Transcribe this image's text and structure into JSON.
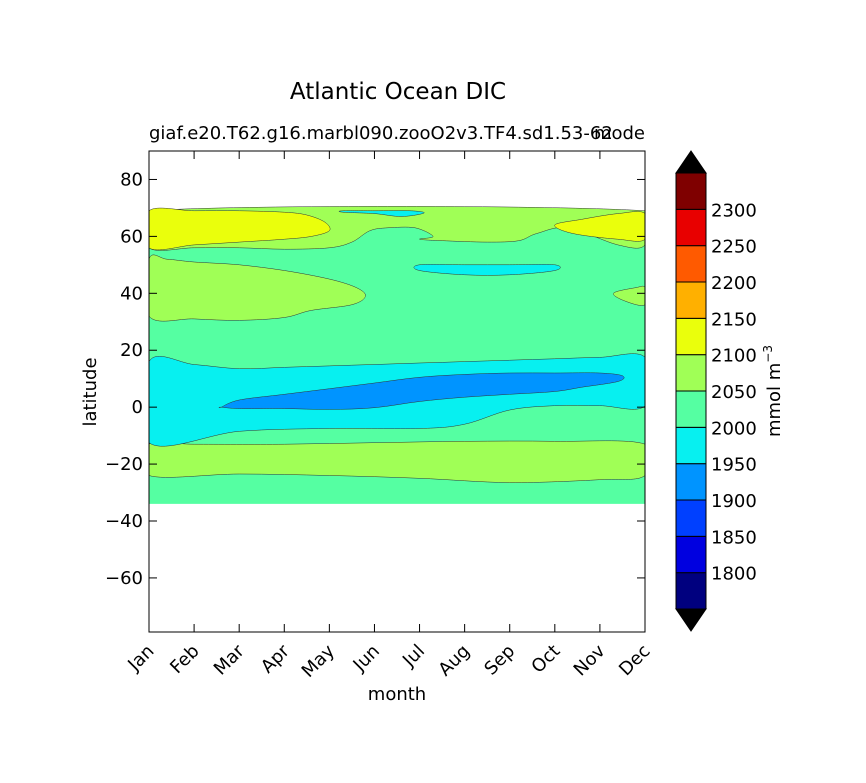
{
  "chart_data": {
    "type": "contourf",
    "title": "Atlantic Ocean DIC",
    "subtitle_left": "giaf.e20.T62.g16.marbl090.zooO2v3.TF4.sd1.53-62",
    "subtitle_right": "mode",
    "xlabel": "month",
    "ylabel": "latitude",
    "x_ticks": [
      "Jan",
      "Feb",
      "Mar",
      "Apr",
      "May",
      "Jun",
      "Jul",
      "Aug",
      "Sep",
      "Oct",
      "Nov",
      "Dec"
    ],
    "y_ticks": [
      80,
      60,
      40,
      20,
      0,
      -20,
      -40,
      -60
    ],
    "xlim": [
      0,
      11
    ],
    "ylim": [
      -79,
      90
    ],
    "data_lat_range": [
      -34,
      69
    ],
    "colorbar": {
      "label": "mmol m",
      "label_superscript": "−3",
      "levels": [
        1750,
        1800,
        1850,
        1900,
        1950,
        2000,
        2050,
        2100,
        2150,
        2200,
        2250,
        2300,
        2350
      ],
      "tick_labels": [
        "1800",
        "1850",
        "1900",
        "1950",
        "2000",
        "2050",
        "2100",
        "2150",
        "2200",
        "2250",
        "2300"
      ],
      "colors": [
        "#00007f",
        "#0000e0",
        "#0040ff",
        "#0094ff",
        "#07f0f0",
        "#55ffa2",
        "#a0ff56",
        "#eaff0c",
        "#ffb000",
        "#ff5a00",
        "#e80000",
        "#7f0000"
      ],
      "extend_colors": {
        "under": "#000000",
        "over": "#000000"
      }
    },
    "regions": [
      {
        "level": "2000-2050",
        "color": "#55ffa2",
        "x": [
          0,
          11,
          11,
          0
        ],
        "y": [
          -34,
          -34,
          69,
          69
        ]
      },
      {
        "level": "2050-2100",
        "color": "#a0ff56",
        "x": [
          0,
          2,
          4,
          6,
          8,
          10,
          11,
          11,
          9,
          7,
          5,
          3,
          1,
          0
        ],
        "y": [
          -24,
          -23.5,
          -24,
          -25,
          -26.5,
          -25.5,
          -24,
          -13,
          -12,
          -12,
          -12.5,
          -13,
          -13,
          -13
        ]
      },
      {
        "level": "2050-2100",
        "color": "#a0ff56",
        "x": [
          0,
          1,
          2,
          3,
          3.6,
          4.5,
          4.8,
          4.6,
          4,
          3,
          2,
          1,
          0.4,
          0
        ],
        "y": [
          32,
          31,
          30.5,
          31.5,
          34,
          36,
          39,
          42,
          45,
          48,
          50,
          51,
          52,
          52
        ]
      },
      {
        "level": "2050-2100",
        "color": "#a0ff56",
        "x": [
          0,
          1,
          2,
          3,
          4,
          4.5,
          4.9,
          5.3,
          5.9,
          6.3,
          6,
          6.5,
          7.5,
          8.2,
          8.6,
          9.3,
          10.4,
          11,
          11,
          0
        ],
        "y": [
          56,
          56,
          56,
          55.5,
          56,
          58,
          62,
          63,
          63,
          60,
          59,
          58.5,
          58,
          58.5,
          61,
          63,
          57,
          57,
          69,
          69
        ]
      },
      {
        "level": "2050-2100",
        "color": "#a0ff56",
        "x": [
          10.3,
          10.8,
          11,
          11,
          10.6
        ],
        "y": [
          40,
          42,
          42,
          36,
          37
        ]
      },
      {
        "level": "2100-2150",
        "color": "#eaff0c",
        "x": [
          0,
          1,
          2,
          3,
          3.5,
          3.9,
          4,
          3.6,
          3,
          2,
          1,
          0
        ],
        "y": [
          69,
          69,
          69,
          68.5,
          67.5,
          65,
          62,
          60,
          59,
          58,
          57,
          56
        ]
      },
      {
        "level": "2100-2150",
        "color": "#eaff0c",
        "x": [
          9,
          9.6,
          10.4,
          11,
          11,
          10.4,
          9.4
        ],
        "y": [
          64,
          66,
          68,
          68,
          59,
          59,
          61
        ]
      },
      {
        "level": "1950-2000",
        "color": "#07f0f0",
        "x": [
          0,
          2,
          4,
          6,
          7,
          8,
          9,
          10,
          11,
          11,
          10,
          9,
          8,
          7,
          6,
          5,
          4,
          3,
          2,
          1,
          0
        ],
        "y": [
          -12.5,
          -8.5,
          -7.5,
          -7.5,
          -6,
          -1,
          0.5,
          0.5,
          0.5,
          17.5,
          17.5,
          17,
          16.5,
          16,
          15.5,
          15,
          14.5,
          14,
          13.5,
          15,
          16
        ]
      },
      {
        "level": "1950-2000",
        "color": "#07f0f0",
        "x": [
          6,
          7,
          8,
          9,
          9,
          8,
          7,
          6
        ],
        "y": [
          48,
          46.5,
          46.5,
          48,
          50,
          50,
          50,
          50
        ]
      },
      {
        "level": "1950-2000",
        "color": "#07f0f0",
        "x": [
          4.3,
          5,
          5.6,
          6.1,
          5.8,
          5,
          4.3
        ],
        "y": [
          68.5,
          68,
          67,
          68.2,
          69,
          69,
          69
        ]
      },
      {
        "level": "1900-1950",
        "color": "#0094ff",
        "x": [
          1.6,
          2,
          3,
          4,
          5,
          6,
          7,
          8,
          9,
          9.6,
          10.4,
          10.5,
          10,
          9,
          8,
          7,
          6,
          5,
          4,
          3,
          2,
          1.6
        ],
        "y": [
          0,
          -0.5,
          -0.5,
          -0.8,
          -0.2,
          2,
          3.5,
          4.5,
          5.5,
          7,
          9,
          11,
          12,
          12,
          12,
          11.5,
          10.5,
          8.5,
          6.5,
          4.5,
          2.5,
          0
        ]
      }
    ]
  }
}
